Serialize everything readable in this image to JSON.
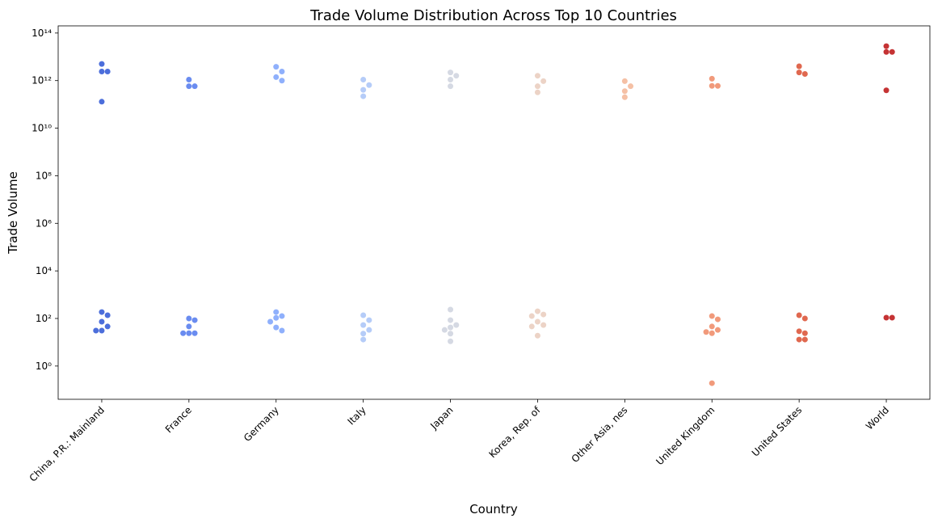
{
  "chart_data": {
    "type": "swarm",
    "title": "Trade Volume Distribution Across Top 10 Countries",
    "x_label": "Country",
    "y_label": "Trade Volume",
    "log_scale": true,
    "categories": [
      "China, P.R.: Mainland",
      "France",
      "Germany",
      "Italy",
      "Japan",
      "Korea, Rep. of",
      "Other Asia, nes",
      "United Kingdom",
      "United States",
      "World"
    ],
    "colors": [
      "#4c6edb",
      "#6a8cf0",
      "#8fb0fc",
      "#b5ccf8",
      "#d5d9e3",
      "#ecd3c6",
      "#f5c0a5",
      "#f19a7b",
      "#e0684f",
      "#c53334"
    ],
    "values": [
      [
        5000000000000,
        2400000000000,
        2400000000000,
        130000000000,
        186,
        137,
        73,
        46,
        31,
        31
      ],
      [
        1100000000000,
        580000000000,
        580000000000,
        100,
        85,
        46,
        24,
        24,
        24
      ],
      [
        3800000000000,
        2400000000000,
        1400000000000,
        1000000000000,
        186,
        126,
        106,
        73,
        42,
        31
      ],
      [
        1100000000000,
        650000000000,
        410000000000,
        220000000000,
        137,
        85,
        53,
        33,
        23,
        13
      ],
      [
        2200000000000,
        1600000000000,
        1100000000000,
        580000000000,
        237,
        85,
        53,
        42,
        33,
        23,
        11
      ],
      [
        1600000000000,
        950000000000,
        580000000000,
        320000000000,
        201,
        147,
        126,
        73,
        53,
        46,
        19
      ],
      [
        950000000000,
        580000000000,
        360000000000,
        200000000000
      ],
      [
        1200000000000,
        600000000000,
        600000000000,
        126,
        92,
        46,
        33,
        27,
        24,
        0.19
      ],
      [
        4000000000000,
        2200000000000,
        1900000000000,
        137,
        100,
        29,
        24,
        13,
        13
      ],
      [
        28000000000000,
        16000000000000,
        16000000000000,
        390000000000,
        108,
        108
      ]
    ],
    "ylim": [
      0.04,
      200000000000000
    ],
    "yticks": [
      {
        "value": 1,
        "label": "10⁰"
      },
      {
        "value": 100,
        "label": "10²"
      },
      {
        "value": 10000,
        "label": "10⁴"
      },
      {
        "value": 1000000,
        "label": "10⁶"
      },
      {
        "value": 100000000,
        "label": "10⁸"
      },
      {
        "value": 10000000000,
        "label": "10¹⁰"
      },
      {
        "value": 1000000000000,
        "label": "10¹²"
      },
      {
        "value": 100000000000000,
        "label": "10¹⁴"
      }
    ]
  }
}
